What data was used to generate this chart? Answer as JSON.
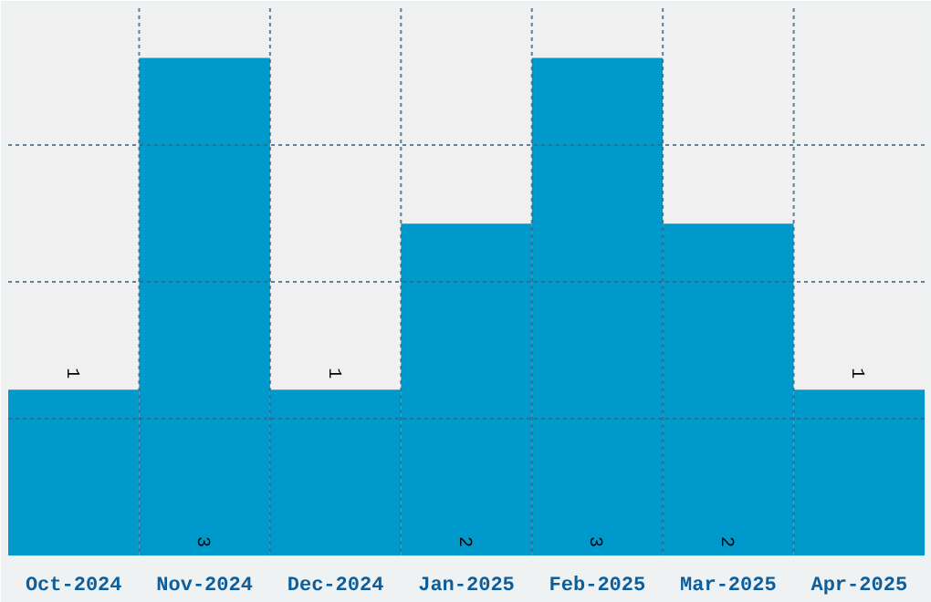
{
  "chart_data": {
    "type": "bar",
    "categories": [
      "Oct-2024",
      "Nov-2024",
      "Dec-2024",
      "Jan-2025",
      "Feb-2025",
      "Mar-2025",
      "Apr-2025"
    ],
    "values": [
      1,
      3,
      1,
      2,
      3,
      2,
      1
    ],
    "color": "#0099cc",
    "ylim": [
      0,
      3.3
    ],
    "yticks": [
      {
        "value": 0.825,
        "label": null
      },
      {
        "value": 1.65,
        "label": null
      },
      {
        "value": 2.475,
        "label": null
      }
    ],
    "tick_labels": "x",
    "data_labels": true,
    "grid": true
  }
}
